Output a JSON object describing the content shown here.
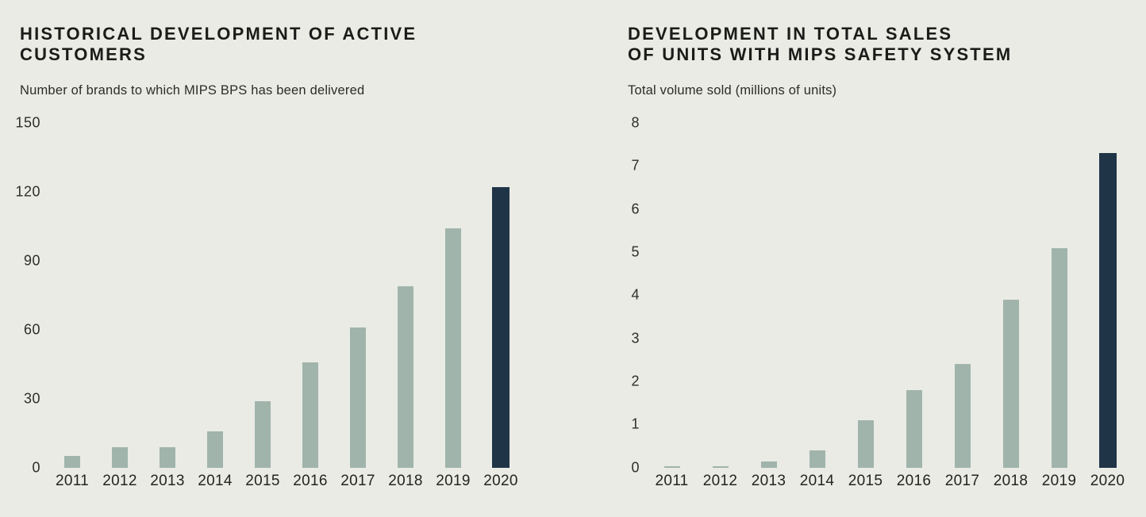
{
  "page": {
    "background_color": "#eaebe5"
  },
  "colors": {
    "bar_light": "#a0b4ac",
    "bar_highlight": "#203447",
    "title_text": "#1b1b19",
    "axis_text": "#2e2e2b"
  },
  "chart_data": [
    {
      "type": "bar",
      "title": "HISTORICAL DEVELOPMENT OF ACTIVE CUSTOMERS",
      "title_lines": [
        "HISTORICAL DEVELOPMENT OF ACTIVE",
        "CUSTOMERS"
      ],
      "subtitle": "Number of brands to which MIPS BPS has been delivered",
      "categories": [
        "2011",
        "2012",
        "2013",
        "2014",
        "2015",
        "2016",
        "2017",
        "2018",
        "2019",
        "2020"
      ],
      "values": [
        5,
        9,
        9,
        16,
        29,
        46,
        61,
        79,
        104,
        122
      ],
      "ylim": [
        0,
        150
      ],
      "yticks": [
        150,
        120,
        90,
        60,
        30,
        0
      ],
      "highlight_index": 9,
      "grid": false,
      "legend": false,
      "xlabel": "",
      "ylabel": "Number of brands to which MIPS BPS has been delivered"
    },
    {
      "type": "bar",
      "title": "DEVELOPMENT IN TOTAL SALES OF UNITS WITH MIPS SAFETY SYSTEM",
      "title_lines": [
        "DEVELOPMENT IN TOTAL SALES",
        "OF UNITS WITH MIPS SAFETY SYSTEM"
      ],
      "subtitle": "Total volume sold (millions of units)",
      "categories": [
        "2011",
        "2012",
        "2013",
        "2014",
        "2015",
        "2016",
        "2017",
        "2018",
        "2019",
        "2020"
      ],
      "values": [
        0.03,
        0.03,
        0.15,
        0.4,
        1.1,
        1.8,
        2.4,
        3.9,
        5.1,
        7.3
      ],
      "ylim": [
        0,
        8
      ],
      "yticks": [
        8,
        7,
        6,
        5,
        4,
        3,
        2,
        1,
        0
      ],
      "highlight_index": 9,
      "grid": false,
      "legend": false,
      "xlabel": "",
      "ylabel": "Total volume sold (millions of units)"
    }
  ]
}
